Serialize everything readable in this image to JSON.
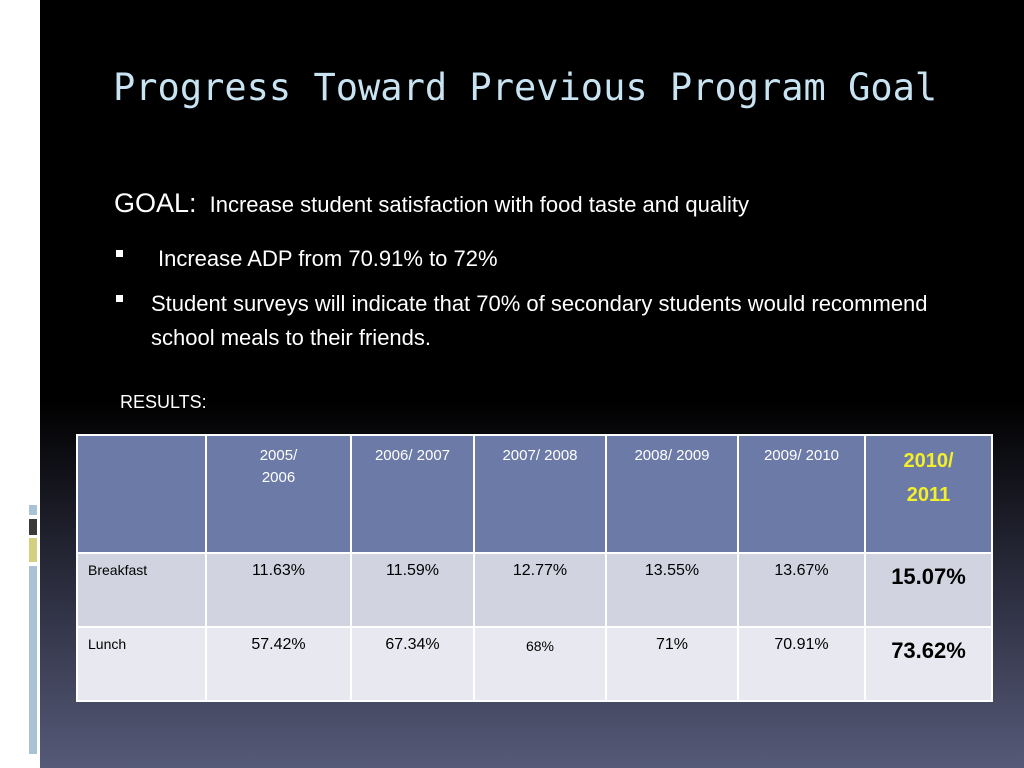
{
  "slide": {
    "title": "Progress Toward Previous Program Goal",
    "goal_label": "GOAL:",
    "goal_text": "Increase student satisfaction with food taste and quality",
    "bullets": [
      "Increase ADP from 70.91% to 72%",
      "Student surveys will indicate that 70% of secondary students would recommend school meals to their friends."
    ],
    "results_label": "RESULTS:"
  },
  "table": {
    "columns": [
      "",
      "2005/ 2006",
      "2006/ 2007",
      "2007/ 2008",
      "2008/ 2009",
      "2009/ 2010",
      "2010/ 2011"
    ],
    "rows": [
      {
        "label": "Breakfast",
        "values": [
          "11.63%",
          "11.59%",
          "12.77%",
          "13.55%",
          "13.67%",
          "15.07%"
        ]
      },
      {
        "label": "Lunch",
        "values": [
          "57.42%",
          "67.34%",
          "68%",
          "71%",
          "70.91%",
          "73.62%"
        ]
      }
    ]
  },
  "colors": {
    "title": "#c8e4f2",
    "header_bg": "#6b7aa6",
    "highlight_header": "#f3ef2a",
    "row_alt_1": "#d1d4e0",
    "row_alt_2": "#e8e9f0"
  }
}
